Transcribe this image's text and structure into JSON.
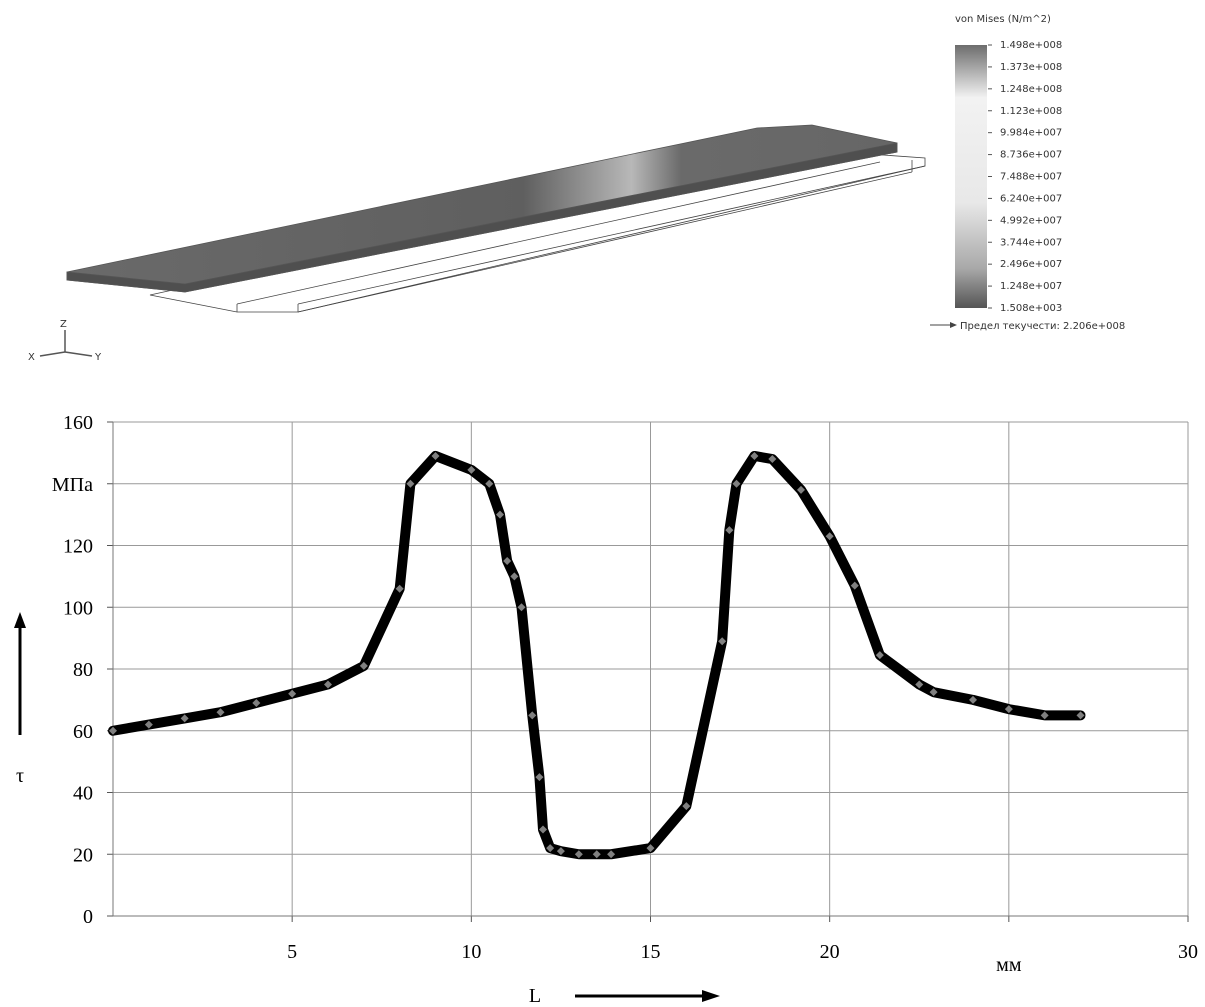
{
  "fea": {
    "legend_title": "von Mises (N/m^2)",
    "legend_labels": [
      "1.498e+008",
      "1.373e+008",
      "1.248e+008",
      "1.123e+008",
      "9.984e+007",
      "8.736e+007",
      "7.488e+007",
      "6.240e+007",
      "4.992e+007",
      "3.744e+007",
      "2.496e+007",
      "1.248e+007",
      "1.508e+003"
    ],
    "yield_label": "Предел текучести: 2.206e+008"
  },
  "triad": {
    "z": "Z",
    "x": "X",
    "y": "Y"
  },
  "chart_data": {
    "type": "line",
    "x_label": "L",
    "y_label": "τ",
    "x": [
      0,
      1,
      2,
      3,
      4,
      5,
      6,
      7,
      8,
      8.3,
      9,
      10,
      10.5,
      10.8,
      11,
      11.2,
      11.4,
      11.7,
      11.9,
      12.0,
      12.2,
      12.5,
      13,
      13.5,
      13.9,
      15,
      16,
      17,
      17.2,
      17.4,
      17.9,
      18.4,
      19.2,
      20,
      20.7,
      21.4,
      22.5,
      22.9,
      24,
      25,
      26,
      27
    ],
    "series": [
      {
        "color": "#000000",
        "marker_color": "#808080",
        "values": [
          60,
          62,
          64,
          66,
          69,
          72,
          75,
          81,
          106,
          140,
          149,
          144.5,
          140,
          130,
          115,
          110,
          100,
          65,
          45,
          28,
          22,
          21,
          20,
          20,
          20,
          22,
          35.6,
          89,
          125,
          140,
          149,
          148,
          138,
          123,
          107,
          84.5,
          75,
          72.5,
          70,
          67,
          65,
          65
        ]
      }
    ],
    "xlim": [
      0,
      30
    ],
    "xticks": [
      5,
      10,
      15,
      20,
      {
        "value": 25,
        "label": "мм"
      },
      30
    ],
    "ylim": [
      0,
      160
    ],
    "yticks": [
      0,
      20,
      40,
      60,
      80,
      100,
      120,
      {
        "value": 140,
        "label": "МПа"
      },
      160
    ],
    "grid": true
  }
}
